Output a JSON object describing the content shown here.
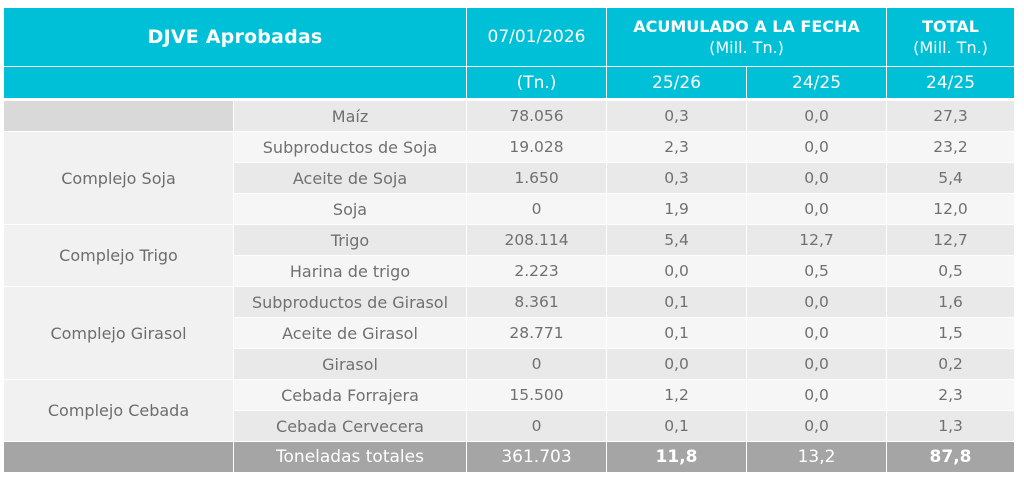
{
  "header": {
    "title": "DJVE Aprobadas",
    "date": "07/01/2026",
    "date_unit": "(Tn.)",
    "acumulado": "ACUMULADO A LA FECHA",
    "acumulado_unit": "(Mill. Tn.)",
    "total": "TOTAL",
    "total_unit": "(Mill. Tn.)",
    "col_25_26": "25/26",
    "col_24_25": "24/25",
    "col_total_24_25": "24/25"
  },
  "groups": {
    "soja": "Complejo Soja",
    "trigo": "Complejo Trigo",
    "girasol": "Complejo Girasol",
    "cebada": "Complejo Cebada"
  },
  "rows": [
    {
      "product": "Maíz",
      "tn": "78.056",
      "a2526": "0,3",
      "a2425": "0,0",
      "total": "27,3"
    },
    {
      "product": "Subproductos de Soja",
      "tn": "19.028",
      "a2526": "2,3",
      "a2425": "0,0",
      "total": "23,2"
    },
    {
      "product": "Aceite de Soja",
      "tn": "1.650",
      "a2526": "0,3",
      "a2425": "0,0",
      "total": "5,4"
    },
    {
      "product": "Soja",
      "tn": "0",
      "a2526": "1,9",
      "a2425": "0,0",
      "total": "12,0"
    },
    {
      "product": "Trigo",
      "tn": "208.114",
      "a2526": "5,4",
      "a2425": "12,7",
      "total": "12,7"
    },
    {
      "product": "Harina de trigo",
      "tn": "2.223",
      "a2526": "0,0",
      "a2425": "0,5",
      "total": "0,5"
    },
    {
      "product": "Subproductos de Girasol",
      "tn": "8.361",
      "a2526": "0,1",
      "a2425": "0,0",
      "total": "1,6"
    },
    {
      "product": "Aceite de Girasol",
      "tn": "28.771",
      "a2526": "0,1",
      "a2425": "0,0",
      "total": "1,5"
    },
    {
      "product": "Girasol",
      "tn": "0",
      "a2526": "0,0",
      "a2425": "0,0",
      "total": "0,2"
    },
    {
      "product": "Cebada Forrajera",
      "tn": "15.500",
      "a2526": "1,2",
      "a2425": "0,0",
      "total": "2,3"
    },
    {
      "product": "Cebada Cervecera",
      "tn": "0",
      "a2526": "0,1",
      "a2425": "0,0",
      "total": "1,3"
    }
  ],
  "footer": {
    "label": "Toneladas totales",
    "tn": "361.703",
    "a2526": "11,8",
    "a2425": "13,2",
    "total": "87,8"
  },
  "colors": {
    "header_bg": "#00c0d8",
    "footer_bg": "#a5a5a5",
    "watermark": "#e3f3f6"
  },
  "watermark_icon": "logo-watermark-icon"
}
